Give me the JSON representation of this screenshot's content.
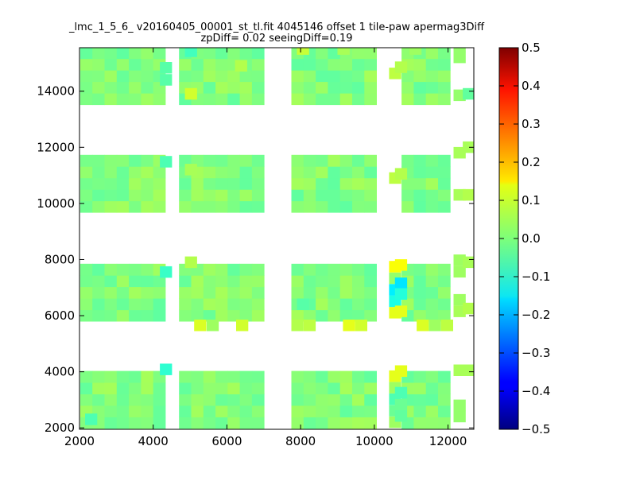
{
  "chart_data": {
    "type": "heatmap",
    "title_line1": "_lmc_1_5_6_ v20160405_00001_st_tl.fit 4045146 offset 1 tile-paw apermag3Diff",
    "title_line2": "zpDiff= 0.02 seeingDiff=0.19",
    "xlabel": "",
    "ylabel": "",
    "xlim": [
      2000,
      12700
    ],
    "ylim": [
      1950,
      15550
    ],
    "xticks": [
      2000,
      4000,
      6000,
      8000,
      10000,
      12000
    ],
    "yticks": [
      2000,
      4000,
      6000,
      8000,
      10000,
      12000,
      14000
    ],
    "colorbar": {
      "min": -0.5,
      "max": 0.5,
      "colormap": "jet",
      "ticks": [
        "0.5",
        "0.4",
        "0.3",
        "0.2",
        "0.1",
        "0.0",
        "−0.1",
        "−0.2",
        "−0.3",
        "−0.4",
        "−0.5"
      ]
    },
    "cell_size": [
      330,
      410
    ],
    "column_groups": [
      {
        "x0": 2020,
        "cols": 7
      },
      {
        "x0": 4700,
        "cols": 7
      },
      {
        "x0": 7750,
        "cols": 7
      },
      {
        "x0": 10740,
        "cols": 4
      }
    ],
    "row_bands": [
      {
        "y0": 1980,
        "rows": 5
      },
      {
        "y0": 5800,
        "rows": 5
      },
      {
        "y0": 9680,
        "rows": 5
      },
      {
        "y0": 13520,
        "rows": 5
      }
    ],
    "base_value": 0.0,
    "cells": [
      {
        "x": 4180,
        "y": 3880,
        "value": -0.08
      },
      {
        "x": 4180,
        "y": 7350,
        "value": -0.07
      },
      {
        "x": 4180,
        "y": 11280,
        "value": -0.05
      },
      {
        "x": 4180,
        "y": 14200,
        "value": -0.04
      },
      {
        "x": 4180,
        "y": 14630,
        "value": -0.04
      },
      {
        "x": 4860,
        "y": 15220,
        "value": -0.06
      },
      {
        "x": 4860,
        "y": 13700,
        "value": 0.08
      },
      {
        "x": 4860,
        "y": 7700,
        "value": 0.05
      },
      {
        "x": 4860,
        "y": 11000,
        "value": 0.04
      },
      {
        "x": 6220,
        "y": 14700,
        "value": 0.05
      },
      {
        "x": 7900,
        "y": 6200,
        "value": -0.04
      },
      {
        "x": 7900,
        "y": 15300,
        "value": 0.07
      },
      {
        "x": 9000,
        "y": 15300,
        "value": 0.04
      },
      {
        "x": 10950,
        "y": 15300,
        "value": 0.03
      },
      {
        "x": 12400,
        "y": 13700,
        "value": -0.03
      },
      {
        "x": 10560,
        "y": 14650,
        "value": 0.05
      },
      {
        "x": 10560,
        "y": 10850,
        "value": 0.05
      },
      {
        "x": 10560,
        "y": 7600,
        "value": 0.12
      },
      {
        "x": 10560,
        "y": 6950,
        "value": -0.15
      },
      {
        "x": 10560,
        "y": 6570,
        "value": -0.09
      },
      {
        "x": 10560,
        "y": 5950,
        "value": 0.1
      },
      {
        "x": 10560,
        "y": 3820,
        "value": 0.1
      },
      {
        "x": 10560,
        "y": 3050,
        "value": -0.05
      },
      {
        "x": 10560,
        "y": 2620,
        "value": -0.02
      },
      {
        "x": 10560,
        "y": 2220,
        "value": -0.03
      },
      {
        "x": 2150,
        "y": 2100,
        "value": -0.05
      },
      {
        "x": 12400,
        "y": 3850,
        "value": 0.04
      },
      {
        "x": 12400,
        "y": 10100,
        "value": 0.05
      },
      {
        "x": 12400,
        "y": 11800,
        "value": 0.04
      },
      {
        "x": 12400,
        "y": 6050,
        "value": 0.05
      },
      {
        "x": 12400,
        "y": 7700,
        "value": 0.04
      }
    ],
    "extra_cells": [
      {
        "x": 5110,
        "y": 5450,
        "value": 0.09
      },
      {
        "x": 5450,
        "y": 5450,
        "value": 0.03
      },
      {
        "x": 6250,
        "y": 5450,
        "value": 0.08
      },
      {
        "x": 7750,
        "y": 5450,
        "value": 0.05
      },
      {
        "x": 8080,
        "y": 5450,
        "value": 0.06
      },
      {
        "x": 9150,
        "y": 5450,
        "value": 0.1
      },
      {
        "x": 9480,
        "y": 5450,
        "value": 0.08
      },
      {
        "x": 11150,
        "y": 5450,
        "value": 0.09
      },
      {
        "x": 11480,
        "y": 5450,
        "value": 0.03
      },
      {
        "x": 11810,
        "y": 5450,
        "value": 0.06
      },
      {
        "x": 12150,
        "y": 5950,
        "value": 0.04
      },
      {
        "x": 12150,
        "y": 6360,
        "value": 0.03
      },
      {
        "x": 12150,
        "y": 7360,
        "value": 0.03
      },
      {
        "x": 12150,
        "y": 7770,
        "value": 0.03
      },
      {
        "x": 12150,
        "y": 10100,
        "value": 0.04
      },
      {
        "x": 12150,
        "y": 11600,
        "value": 0.04
      },
      {
        "x": 12150,
        "y": 13650,
        "value": 0.02
      },
      {
        "x": 12150,
        "y": 15000,
        "value": 0.02
      },
      {
        "x": 12150,
        "y": 15400,
        "value": 0.02
      },
      {
        "x": 12150,
        "y": 2200,
        "value": 0.02
      },
      {
        "x": 12150,
        "y": 2600,
        "value": 0.02
      },
      {
        "x": 12150,
        "y": 3850,
        "value": 0.04
      }
    ]
  }
}
